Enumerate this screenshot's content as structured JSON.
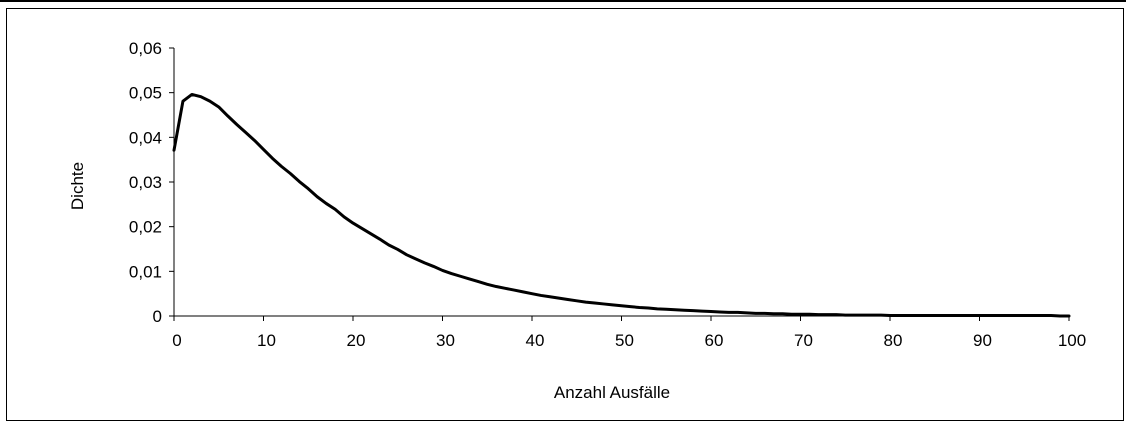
{
  "chart_data": {
    "type": "line",
    "title": "",
    "xlabel": "Anzahl Ausfälle",
    "ylabel": "Dichte",
    "xlim": [
      0,
      100
    ],
    "ylim": [
      0,
      0.06
    ],
    "x_ticks": [
      0,
      10,
      20,
      30,
      40,
      50,
      60,
      70,
      80,
      90,
      100
    ],
    "x_tick_labels": [
      "0",
      "10",
      "20",
      "30",
      "40",
      "50",
      "60",
      "70",
      "80",
      "90",
      "100"
    ],
    "y_ticks": [
      0,
      0.01,
      0.02,
      0.03,
      0.04,
      0.05,
      0.06
    ],
    "y_tick_labels": [
      "0",
      "0,01",
      "0,02",
      "0,03",
      "0,04",
      "0,05",
      "0,06"
    ],
    "grid": false,
    "legend": "none",
    "line_color": "#000000",
    "series": [
      {
        "x": [
          0,
          1,
          2,
          3,
          4,
          5,
          6,
          7,
          8,
          9,
          10,
          11,
          12,
          13,
          14,
          15,
          16,
          17,
          18,
          19,
          20,
          21,
          22,
          23,
          24,
          25,
          26,
          27,
          28,
          29,
          30,
          31,
          32,
          33,
          34,
          35,
          36,
          37,
          38,
          39,
          40,
          41,
          42,
          43,
          44,
          45,
          46,
          47,
          48,
          49,
          50,
          51,
          52,
          53,
          54,
          55,
          56,
          57,
          58,
          59,
          60,
          61,
          62,
          63,
          64,
          65,
          66,
          67,
          68,
          69,
          70,
          71,
          72,
          73,
          74,
          75,
          76,
          77,
          78,
          79,
          80,
          81,
          82,
          83,
          84,
          85,
          86,
          87,
          88,
          89,
          90,
          91,
          92,
          93,
          94,
          95,
          96,
          97,
          98,
          99,
          100
        ],
        "values": [
          0.0371,
          0.0481,
          0.0496,
          0.0491,
          0.0481,
          0.0468,
          0.0448,
          0.0429,
          0.0411,
          0.0393,
          0.0373,
          0.0353,
          0.0335,
          0.0319,
          0.0301,
          0.0285,
          0.0267,
          0.0252,
          0.0239,
          0.0222,
          0.0208,
          0.0196,
          0.0184,
          0.0172,
          0.0159,
          0.0149,
          0.0137,
          0.0128,
          0.0119,
          0.0111,
          0.0102,
          0.0095,
          0.0089,
          0.0083,
          0.0077,
          0.0071,
          0.0066,
          0.0062,
          0.0058,
          0.0054,
          0.005,
          0.0046,
          0.0043,
          0.004,
          0.0037,
          0.0034,
          0.0031,
          0.0029,
          0.0027,
          0.0025,
          0.0023,
          0.0021,
          0.0019,
          0.0018,
          0.0016,
          0.0015,
          0.0014,
          0.0013,
          0.0012,
          0.0011,
          0.001,
          0.0009,
          0.0008,
          0.0008,
          0.0007,
          0.0006,
          0.0006,
          0.0005,
          0.0005,
          0.0004,
          0.0004,
          0.0004,
          0.0003,
          0.0003,
          0.0003,
          0.0002,
          0.0002,
          0.0002,
          0.0002,
          0.0002,
          0.0001,
          0.0001,
          0.0001,
          0.0001,
          0.0001,
          0.0001,
          0.0001,
          0.0001,
          0.0001,
          0.0001,
          0.0001,
          0.0001,
          0.0001,
          0.0001,
          0.0001,
          0.0001,
          0.0001,
          0.0001,
          0.0001,
          0,
          0
        ]
      }
    ]
  }
}
